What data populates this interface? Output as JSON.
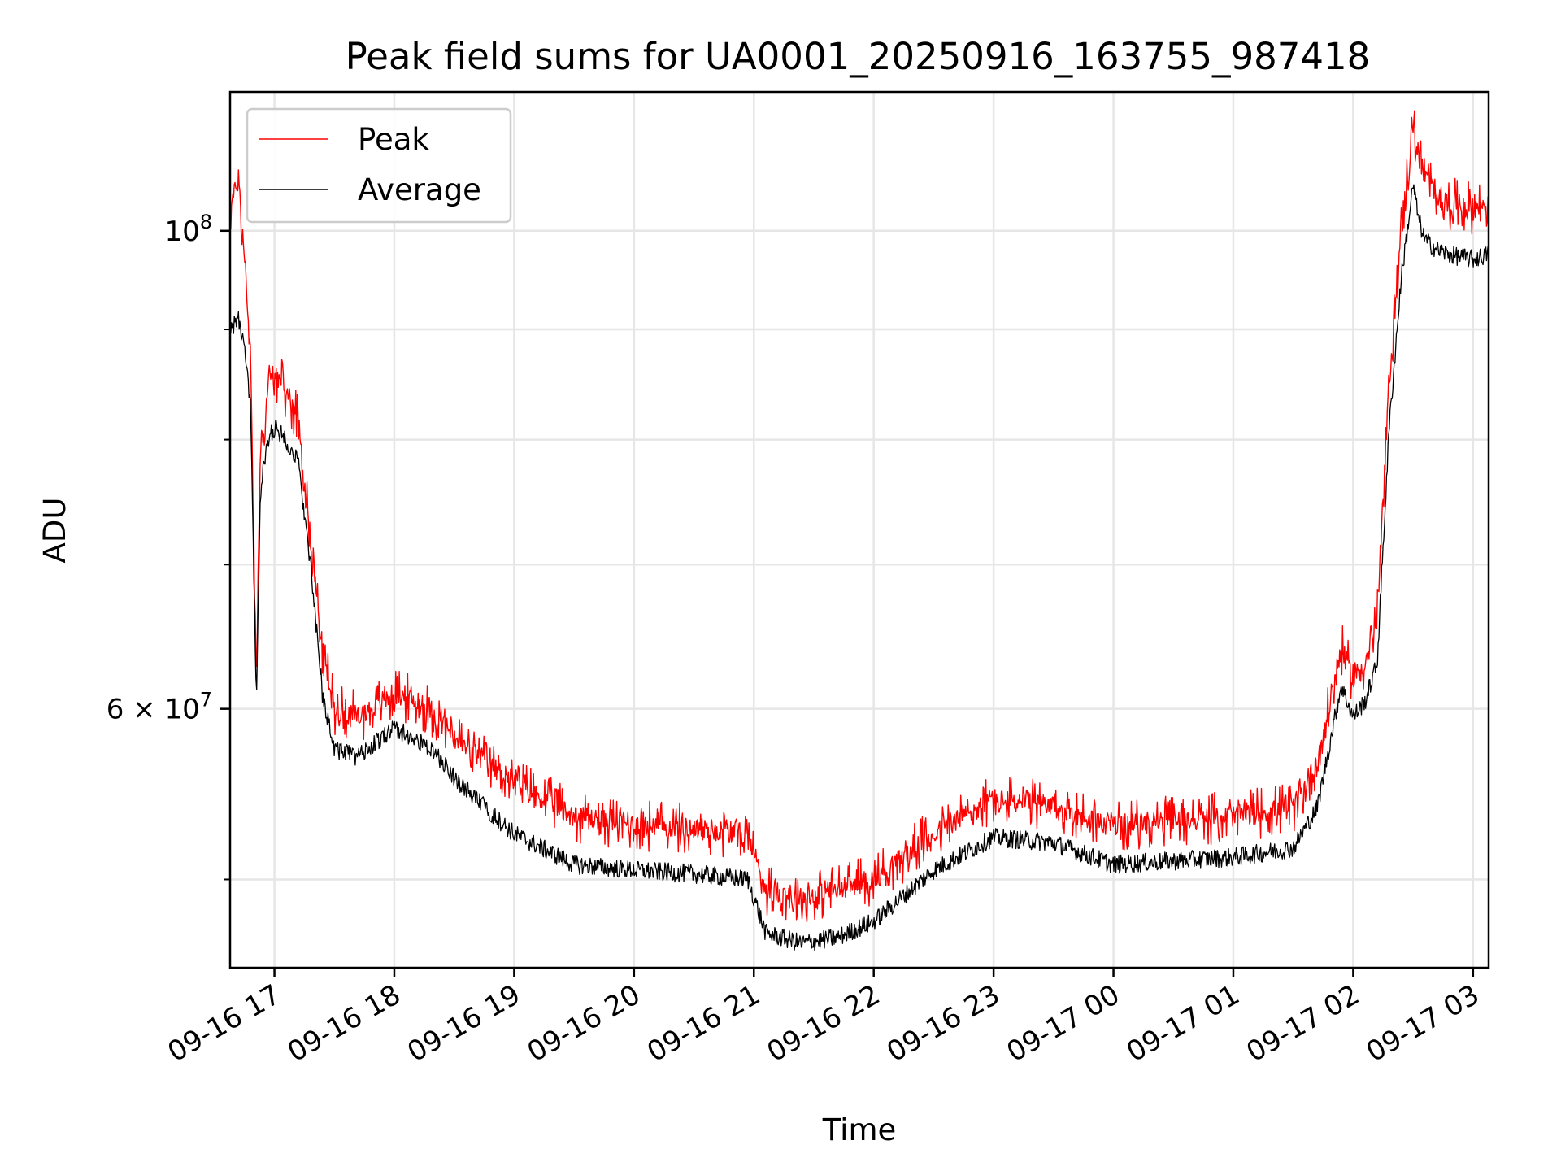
{
  "chart_data": {
    "type": "line",
    "title": "Peak field sums for UA0001_20250916_163755_987418",
    "xlabel": "Time",
    "ylabel": "ADU",
    "yscale": "log",
    "xlim_hours": [
      16.63,
      27.13
    ],
    "ylim": [
      45500000,
      116000000
    ],
    "grid": true,
    "legend_position": "top-left",
    "x_ticks": [
      {
        "label": "09-16 17",
        "hour": 17
      },
      {
        "label": "09-16 18",
        "hour": 18
      },
      {
        "label": "09-16 19",
        "hour": 19
      },
      {
        "label": "09-16 20",
        "hour": 20
      },
      {
        "label": "09-16 21",
        "hour": 21
      },
      {
        "label": "09-16 22",
        "hour": 22
      },
      {
        "label": "09-16 23",
        "hour": 23
      },
      {
        "label": "09-17 00",
        "hour": 24
      },
      {
        "label": "09-17 01",
        "hour": 25
      },
      {
        "label": "09-17 02",
        "hour": 26
      },
      {
        "label": "09-17 03",
        "hour": 27
      }
    ],
    "y_ticks": [
      {
        "base": "10",
        "exp": "8",
        "coef": "",
        "value": 100000000
      },
      {
        "base": "10",
        "exp": "7",
        "coef": "6",
        "value": 60000000
      }
    ],
    "y_minor_ticks": [
      50000000,
      70000000,
      80000000,
      90000000
    ],
    "series": [
      {
        "name": "Peak",
        "color": "#ff0000",
        "hour": [
          16.63,
          16.7,
          16.75,
          16.8,
          16.85,
          16.88,
          16.9,
          16.95,
          17.0,
          17.1,
          17.2,
          17.3,
          17.4,
          17.5,
          17.7,
          18.0,
          18.3,
          18.6,
          19.0,
          19.5,
          20.0,
          20.5,
          20.95,
          21.1,
          21.4,
          21.7,
          22.0,
          22.5,
          23.0,
          23.5,
          24.0,
          24.5,
          25.0,
          25.5,
          25.7,
          25.9,
          26.0,
          26.1,
          26.2,
          26.3,
          26.4,
          26.5,
          26.55,
          26.6,
          26.7,
          26.8,
          27.0,
          27.13
        ],
        "values": [
          102000000,
          106000000,
          97000000,
          88000000,
          62000000,
          78000000,
          80000000,
          85000000,
          86000000,
          84000000,
          82000000,
          72000000,
          64000000,
          60000000,
          59500000,
          61000000,
          60000000,
          57500000,
          55500000,
          53500000,
          53000000,
          52800000,
          52500000,
          49500000,
          49000000,
          49500000,
          50000000,
          52500000,
          54500000,
          54000000,
          53000000,
          53200000,
          53500000,
          54000000,
          56500000,
          64000000,
          62000000,
          63000000,
          66000000,
          85000000,
          100000000,
          112000000,
          108000000,
          106000000,
          104000000,
          103000000,
          102500000,
          103000000
        ]
      },
      {
        "name": "Average",
        "color": "#000000",
        "hour": [
          16.63,
          16.7,
          16.75,
          16.8,
          16.85,
          16.88,
          16.9,
          16.95,
          17.0,
          17.1,
          17.2,
          17.3,
          17.4,
          17.5,
          17.7,
          18.0,
          18.3,
          18.6,
          19.0,
          19.5,
          20.0,
          20.5,
          20.95,
          21.1,
          21.4,
          21.7,
          22.0,
          22.5,
          23.0,
          23.5,
          24.0,
          24.5,
          25.0,
          25.5,
          25.7,
          25.9,
          26.0,
          26.1,
          26.2,
          26.3,
          26.4,
          26.5,
          26.55,
          26.6,
          26.7,
          26.8,
          27.0,
          27.13
        ],
        "values": [
          90000000,
          91000000,
          88000000,
          83000000,
          60000000,
          75000000,
          77000000,
          80000000,
          81000000,
          80000000,
          78000000,
          70000000,
          61000000,
          57500000,
          57000000,
          58800000,
          57500000,
          55000000,
          52500000,
          50800000,
          50500000,
          50300000,
          50000000,
          47200000,
          46700000,
          47000000,
          47800000,
          50500000,
          52300000,
          52000000,
          50800000,
          51000000,
          51200000,
          51700000,
          54000000,
          61500000,
          59500000,
          60500000,
          63000000,
          81000000,
          95000000,
          105000000,
          101000000,
          99000000,
          98000000,
          97500000,
          97000000,
          97500000
        ]
      }
    ]
  }
}
